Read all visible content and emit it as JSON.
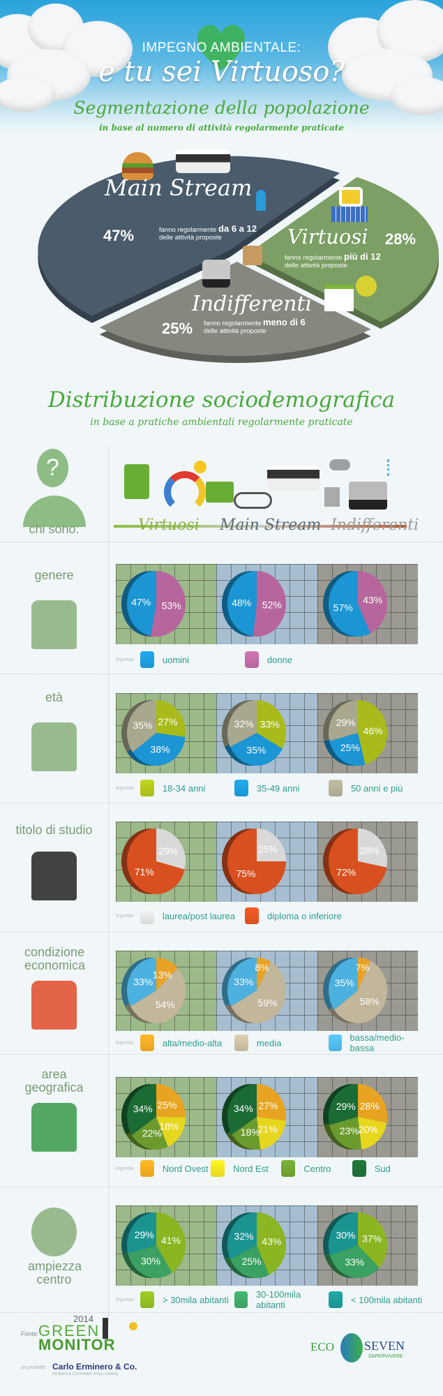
{
  "header": {
    "line1": "IMPEGNO AMBIENTALE:",
    "line2": "e tu sei Virtuoso?"
  },
  "segmentation": {
    "title": "Segmentazione della popolazione",
    "subtitle": "in base al numero di attività regolarmente praticate",
    "segments": [
      {
        "name": "Main Stream",
        "percent_label": "47%",
        "desc_prefix": "fanno regolarmente",
        "desc_strong": "da 6 a 12",
        "desc_line2": "delle attività proposte"
      },
      {
        "name": "Virtuosi",
        "percent_label": "28%",
        "desc_prefix": "fanno regolarmente",
        "desc_strong": "più di 12",
        "desc_line2": "delle attività proposte"
      },
      {
        "name": "Indifferenti",
        "percent_label": "25%",
        "desc_prefix": "fanno regolarmente",
        "desc_strong": "meno di 6",
        "desc_line2": "delle attività proposte"
      }
    ]
  },
  "distribution": {
    "title": "Distribuzione sociodemografica",
    "subtitle": "in base a pratiche ambientali regolarmente praticate",
    "chi_sono": "chi sono:",
    "columns": [
      "Virtuosi",
      "Main Stream",
      "Indifferenti"
    ],
    "legend_word": "legenda:"
  },
  "colors": {
    "virtuosi": "#8ab33a",
    "mainstream": "#4a5b6b",
    "indifferenti": "#9a9a94",
    "panel_virtuosi": "#9cb98a",
    "panel_mainstream": "#a6bed0",
    "panel_indifferenti": "#9b9a92"
  },
  "chart_data": {
    "type": "pie",
    "segmentation": {
      "categories": [
        "Main Stream",
        "Virtuosi",
        "Indifferenti"
      ],
      "values": [
        47,
        28,
        25
      ],
      "colors": [
        "#4a5b6b",
        "#7b9f64",
        "#85887f"
      ]
    },
    "rows": [
      {
        "label": "genere",
        "categories": [
          "uomini",
          "donne"
        ],
        "colors": [
          "#1b95d3",
          "#b7669d"
        ],
        "order": [
          1,
          0
        ],
        "series": [
          {
            "name": "Virtuosi",
            "values": [
              47,
              53
            ]
          },
          {
            "name": "Main Stream",
            "values": [
              48,
              52
            ]
          },
          {
            "name": "Indifferenti",
            "values": [
              57,
              43
            ]
          }
        ]
      },
      {
        "label": "età",
        "categories": [
          "18-34 anni",
          "35-49 anni",
          "50 anni e più"
        ],
        "colors": [
          "#a9bb1a",
          "#1b95d3",
          "#a9a88f"
        ],
        "order": [
          0,
          1,
          2
        ],
        "series": [
          {
            "name": "Virtuosi",
            "values": [
              27,
              38,
              35
            ]
          },
          {
            "name": "Main Stream",
            "values": [
              33,
              35,
              32
            ]
          },
          {
            "name": "Indifferenti",
            "values": [
              46,
              25,
              29
            ]
          }
        ]
      },
      {
        "label": "titolo di studio",
        "categories": [
          "laurea/post laurea",
          "diploma o inferiore"
        ],
        "colors": [
          "#d9d9d9",
          "#d8501f"
        ],
        "order": [
          0,
          1
        ],
        "series": [
          {
            "name": "Virtuosi",
            "values": [
              29,
              71
            ]
          },
          {
            "name": "Main Stream",
            "values": [
              25,
              75
            ]
          },
          {
            "name": "Indifferenti",
            "values": [
              28,
              72
            ]
          }
        ]
      },
      {
        "label": "condizione economica",
        "categories": [
          "alta/medio-alta",
          "media",
          "bassa/medio-bassa"
        ],
        "colors": [
          "#e9a224",
          "#c2b69b",
          "#4cb1de"
        ],
        "order": [
          0,
          1,
          2
        ],
        "series": [
          {
            "name": "Virtuosi",
            "values": [
              13,
              54,
              33
            ]
          },
          {
            "name": "Main Stream",
            "values": [
              8,
              59,
              33
            ]
          },
          {
            "name": "Indifferenti",
            "values": [
              7,
              58,
              35
            ]
          }
        ]
      },
      {
        "label": "area geografica",
        "categories": [
          "Nord Ovest",
          "Nord Est",
          "Centro",
          "Sud"
        ],
        "colors": [
          "#e8a420",
          "#e6d71e",
          "#6b9b2f",
          "#1b6b35"
        ],
        "order": [
          0,
          1,
          2,
          3
        ],
        "series": [
          {
            "name": "Virtuosi",
            "values": [
              25,
              18,
              22,
              34
            ]
          },
          {
            "name": "Main Stream",
            "values": [
              27,
              21,
              18,
              34
            ]
          },
          {
            "name": "Indifferenti",
            "values": [
              28,
              20,
              23,
              29
            ]
          }
        ]
      },
      {
        "label": "ampiezza centro",
        "categories": [
          "> 30mila abitanti",
          "30-100mila abitanti",
          "< 100mila abitanti"
        ],
        "colors": [
          "#8bb521",
          "#3ba162",
          "#1b9491"
        ],
        "order": [
          0,
          1,
          2
        ],
        "series": [
          {
            "name": "Virtuosi",
            "values": [
              41,
              30,
              29
            ]
          },
          {
            "name": "Main Stream",
            "values": [
              43,
              25,
              32
            ]
          },
          {
            "name": "Indifferenti",
            "values": [
              37,
              33,
              30
            ]
          }
        ]
      }
    ]
  },
  "footer": {
    "fonte": "Fonte:",
    "logo_year": "2014",
    "logo_green": "GREEN",
    "logo_monitor": "MONITOR",
    "prodotto": "un prodotto",
    "company": "Carlo Erminero & Co.",
    "company_sub": "RICERCA E CUSTOMER INTELLIGENCE",
    "eco": "ECO",
    "seven": "SEVEN",
    "sapervivere": "SAPERVIVERE"
  }
}
